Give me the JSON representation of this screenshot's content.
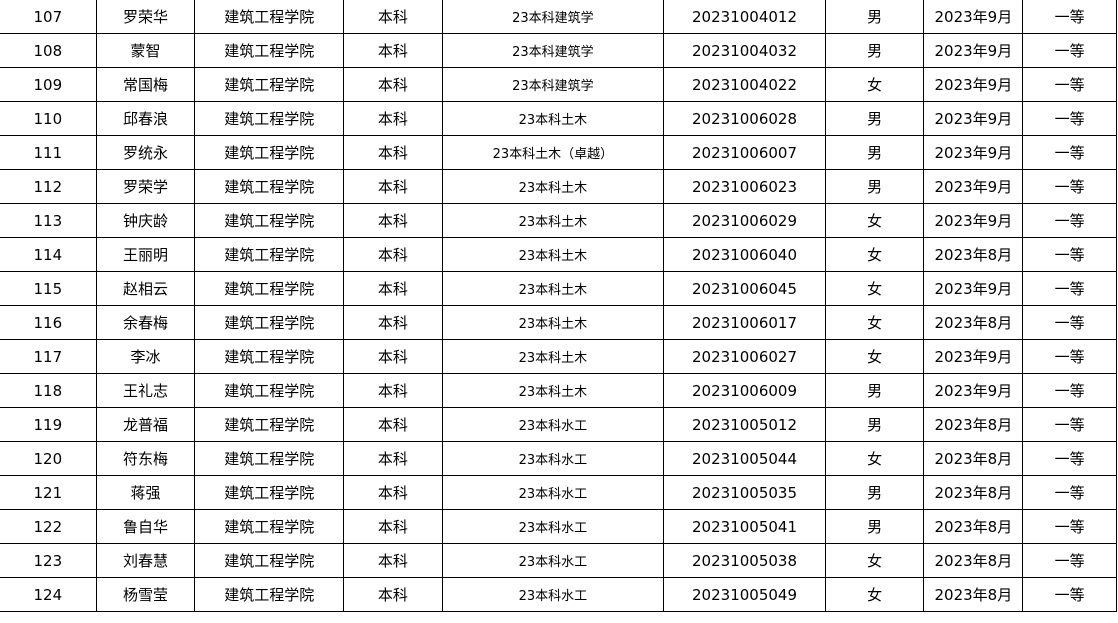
{
  "table": {
    "rows": [
      [
        "107",
        "罗荣华",
        "建筑工程学院",
        "本科",
        "23本科建筑学",
        "20231004012",
        "男",
        "2023年9月",
        "一等"
      ],
      [
        "108",
        "蒙智",
        "建筑工程学院",
        "本科",
        "23本科建筑学",
        "20231004032",
        "男",
        "2023年9月",
        "一等"
      ],
      [
        "109",
        "常国梅",
        "建筑工程学院",
        "本科",
        "23本科建筑学",
        "20231004022",
        "女",
        "2023年9月",
        "一等"
      ],
      [
        "110",
        "邱春浪",
        "建筑工程学院",
        "本科",
        "23本科土木",
        "20231006028",
        "男",
        "2023年9月",
        "一等"
      ],
      [
        "111",
        "罗统永",
        "建筑工程学院",
        "本科",
        "23本科土木（卓越）",
        "20231006007",
        "男",
        "2023年9月",
        "一等"
      ],
      [
        "112",
        "罗荣学",
        "建筑工程学院",
        "本科",
        "23本科土木",
        "20231006023",
        "男",
        "2023年9月",
        "一等"
      ],
      [
        "113",
        "钟庆龄",
        "建筑工程学院",
        "本科",
        "23本科土木",
        "20231006029",
        "女",
        "2023年9月",
        "一等"
      ],
      [
        "114",
        "王丽明",
        "建筑工程学院",
        "本科",
        "23本科土木",
        "20231006040",
        "女",
        "2023年8月",
        "一等"
      ],
      [
        "115",
        "赵相云",
        "建筑工程学院",
        "本科",
        "23本科土木",
        "20231006045",
        "女",
        "2023年9月",
        "一等"
      ],
      [
        "116",
        "余春梅",
        "建筑工程学院",
        "本科",
        "23本科土木",
        "20231006017",
        "女",
        "2023年8月",
        "一等"
      ],
      [
        "117",
        "李冰",
        "建筑工程学院",
        "本科",
        "23本科土木",
        "20231006027",
        "女",
        "2023年9月",
        "一等"
      ],
      [
        "118",
        "王礼志",
        "建筑工程学院",
        "本科",
        "23本科土木",
        "20231006009",
        "男",
        "2023年9月",
        "一等"
      ],
      [
        "119",
        "龙普福",
        "建筑工程学院",
        "本科",
        "23本科水工",
        "20231005012",
        "男",
        "2023年8月",
        "一等"
      ],
      [
        "120",
        "符东梅",
        "建筑工程学院",
        "本科",
        "23本科水工",
        "20231005044",
        "女",
        "2023年8月",
        "一等"
      ],
      [
        "121",
        "蒋强",
        "建筑工程学院",
        "本科",
        "23本科水工",
        "20231005035",
        "男",
        "2023年8月",
        "一等"
      ],
      [
        "122",
        "鲁自华",
        "建筑工程学院",
        "本科",
        "23本科水工",
        "20231005041",
        "男",
        "2023年8月",
        "一等"
      ],
      [
        "123",
        "刘春慧",
        "建筑工程学院",
        "本科",
        "23本科水工",
        "20231005038",
        "女",
        "2023年8月",
        "一等"
      ],
      [
        "124",
        "杨雪莹",
        "建筑工程学院",
        "本科",
        "23本科水工",
        "20231005049",
        "女",
        "2023年8月",
        "一等"
      ]
    ]
  }
}
